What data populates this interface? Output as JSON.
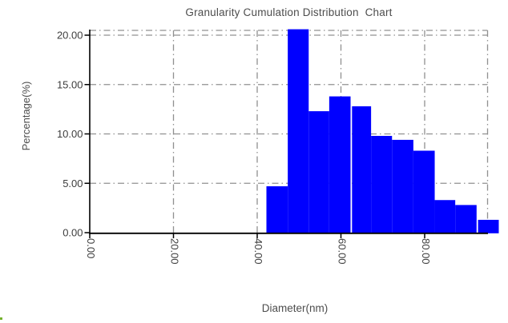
{
  "chart_data": {
    "type": "bar",
    "title": "Granularity Cumulation Distribution  Chart",
    "xlabel": "Diameter(nm)",
    "ylabel": "Percentage(%)",
    "xlim": [
      0,
      97.7
    ],
    "ylim": [
      0,
      20.6
    ],
    "grid": "gray dash-dot; vertical every 20 nm, horizontal every 5 %; top and right frame drawn in same dash-dot style",
    "legend": "none",
    "x_ticks": [
      {
        "label": "0.00",
        "value": 0
      },
      {
        "label": "20.00",
        "value": 20
      },
      {
        "label": "40.00",
        "value": 40
      },
      {
        "label": "60.00",
        "value": 60
      },
      {
        "label": "80.00",
        "value": 80
      }
    ],
    "y_ticks": [
      {
        "label": "0.00",
        "value": 0
      },
      {
        "label": "5.00",
        "value": 5
      },
      {
        "label": "10.00",
        "value": 10
      },
      {
        "label": "15.00",
        "value": 15
      },
      {
        "label": "20.00",
        "value": 20
      }
    ],
    "bars": [
      {
        "from_nm": 42.2,
        "to_nm": 47.3,
        "pct": 4.7
      },
      {
        "from_nm": 47.3,
        "to_nm": 52.3,
        "pct": 20.6,
        "clipped_at_plot_top": true
      },
      {
        "from_nm": 52.3,
        "to_nm": 57.2,
        "pct": 12.3
      },
      {
        "from_nm": 57.2,
        "to_nm": 62.3,
        "pct": 13.8
      },
      {
        "from_nm": 62.3,
        "to_nm": 67.2,
        "pct": 12.8,
        "separator_before": true
      },
      {
        "from_nm": 67.2,
        "to_nm": 72.2,
        "pct": 9.8
      },
      {
        "from_nm": 72.2,
        "to_nm": 77.3,
        "pct": 9.4
      },
      {
        "from_nm": 77.3,
        "to_nm": 82.4,
        "pct": 8.3
      },
      {
        "from_nm": 82.4,
        "to_nm": 87.3,
        "pct": 3.3
      },
      {
        "from_nm": 87.3,
        "to_nm": 92.4,
        "pct": 2.8
      },
      {
        "from_nm": 92.4,
        "to_nm": 97.7,
        "pct": 1.3,
        "separator_before": true
      }
    ]
  },
  "colors": {
    "bar": "#0000ff",
    "grid": "#909090",
    "axis": "#000000",
    "tick_text": "#3d3d3d",
    "label_text": "#4d4d4d",
    "background": "#ffffff",
    "corner_artifact": "#74b12c"
  }
}
